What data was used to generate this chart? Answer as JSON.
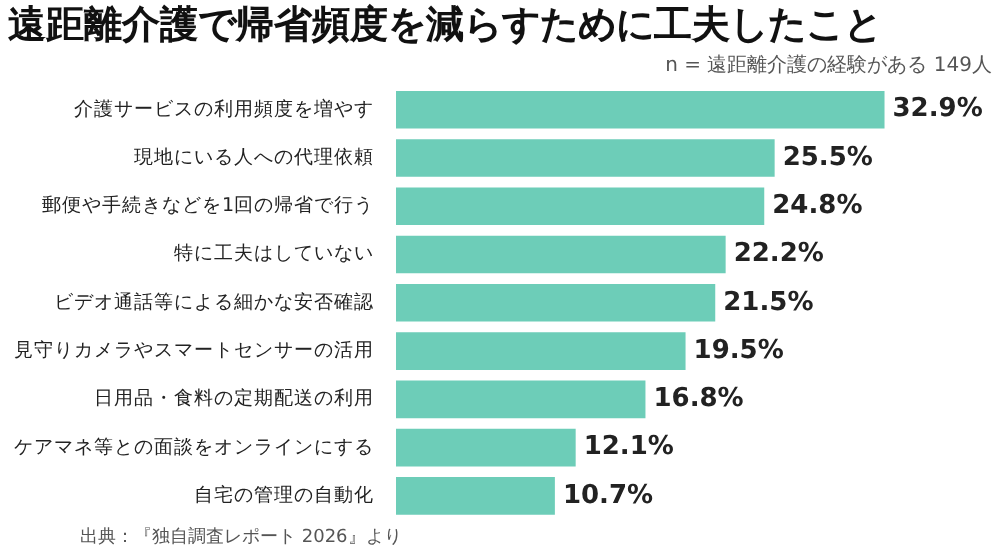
{
  "chart_data": {
    "type": "bar",
    "orientation": "horizontal",
    "title": "遠距離介護で帰省頻度を減らすために工夫したこと",
    "subtitle": "n = 遠距離介護の経験がある 149人",
    "categories": [
      "介護サービスの利用頻度を増やす",
      "現地にいる人への代理依頼",
      "郵便や手続きなどを1回の帰省で行う",
      "特に工夫はしていない",
      "ビデオ通話等による細かな安否確認",
      "見守りカメラやスマートセンサーの活用",
      "日用品・食料の定期配送の利用",
      "ケアマネ等との面談をオンラインにする",
      "自宅の管理の自動化"
    ],
    "values": [
      32.9,
      25.5,
      24.8,
      22.2,
      21.5,
      19.5,
      16.8,
      12.1,
      10.7
    ],
    "value_labels": [
      "32.9%",
      "25.5%",
      "24.8%",
      "22.2%",
      "21.5%",
      "19.5%",
      "16.8%",
      "12.1%",
      "10.7%"
    ],
    "color": "#6dcdb8",
    "annotations": [
      "出典：『独自調査レポート 2026』より"
    ]
  }
}
